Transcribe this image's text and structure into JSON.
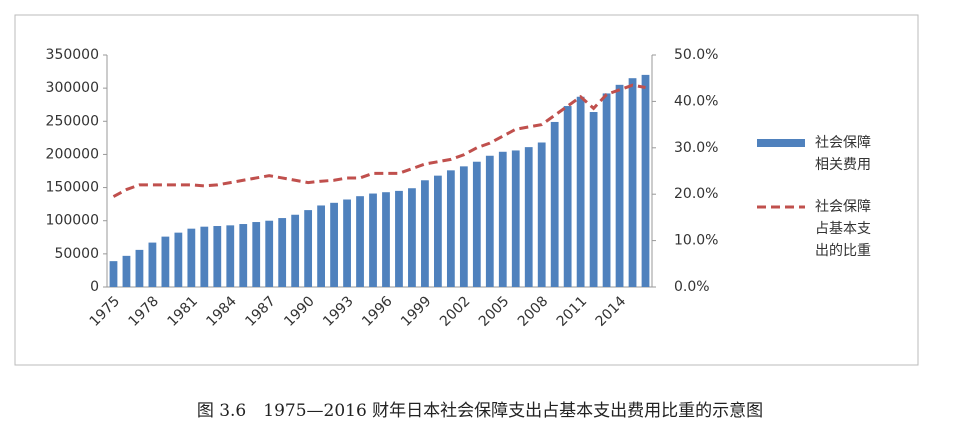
{
  "chart_data": {
    "type": "bar",
    "caption": "图 3.6　1975—2016 财年日本社会保障支出占基本支出费用比重的示意图",
    "categories": [
      "1975",
      null,
      null,
      "1978",
      null,
      null,
      "1981",
      null,
      null,
      "1984",
      null,
      null,
      "1987",
      null,
      null,
      "1990",
      null,
      null,
      "1993",
      null,
      null,
      "1996",
      null,
      null,
      "1999",
      null,
      null,
      "2002",
      null,
      null,
      "2005",
      null,
      null,
      "2008",
      null,
      null,
      "2011",
      null,
      null,
      "2014",
      null,
      null
    ],
    "series": [
      {
        "name": "社会保障相关费用",
        "type": "bar",
        "color": "#4f81bd",
        "values": [
          39000,
          47000,
          56000,
          67000,
          76000,
          82000,
          88000,
          91000,
          92000,
          93000,
          95000,
          98000,
          100000,
          104000,
          109000,
          116000,
          123000,
          127000,
          132000,
          137000,
          141000,
          143000,
          145000,
          149000,
          161000,
          168000,
          176000,
          182000,
          189000,
          198000,
          204000,
          206000,
          211000,
          218000,
          249000,
          273000,
          287000,
          264000,
          292000,
          305000,
          315000,
          320000
        ]
      },
      {
        "name": "社会保障占基本支出的比重",
        "type": "line",
        "axis": "y2",
        "color": "#c0504d",
        "dashed": true,
        "values": [
          19.5,
          21,
          22,
          22,
          22,
          22,
          22,
          21.8,
          22,
          22.5,
          23,
          23.5,
          24,
          23.5,
          23,
          22.5,
          22.8,
          23,
          23.5,
          23.5,
          24.5,
          24.5,
          24.5,
          25.5,
          26.5,
          27,
          27.5,
          28.5,
          30,
          31,
          32.5,
          34,
          34.5,
          35,
          37,
          39,
          41,
          38.5,
          41.5,
          42.5,
          43.5,
          43
        ]
      }
    ],
    "ylim": [
      0,
      350000
    ],
    "yticks": [
      0,
      50000,
      100000,
      150000,
      200000,
      250000,
      300000,
      350000
    ],
    "y2lim": [
      0,
      50
    ],
    "y2ticks": [
      {
        "value": 0,
        "label": "0.0%"
      },
      {
        "value": 10,
        "label": "10.0%"
      },
      {
        "value": 20,
        "label": "20.0%"
      },
      {
        "value": 30,
        "label": "30.0%"
      },
      {
        "value": 40,
        "label": "40.0%"
      },
      {
        "value": 50,
        "label": "50.0%"
      }
    ],
    "grid": false,
    "legend": "right"
  }
}
